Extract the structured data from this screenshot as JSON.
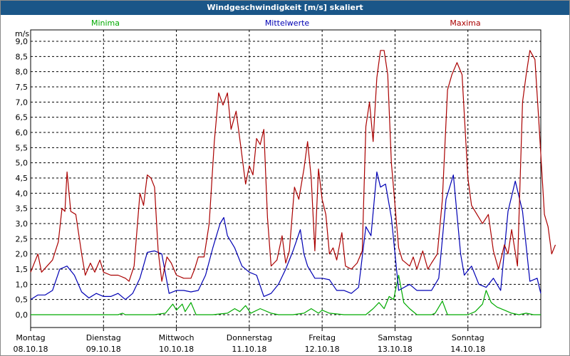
{
  "window": {
    "title": "Windgeschwindigkeit [m/s] skaliert"
  },
  "chart_data": {
    "type": "line",
    "title": "Windgeschwindigkeit [m/s] skaliert",
    "ylabel": "m/s",
    "xlabel": "",
    "ylim": [
      0,
      9.2
    ],
    "xlim": [
      0,
      7
    ],
    "grid": true,
    "legend": "top",
    "y_ticks": [
      "0,0",
      "0,5",
      "1,0",
      "1,5",
      "2,0",
      "2,5",
      "3,0",
      "3,5",
      "4,0",
      "4,5",
      "5,0",
      "5,5",
      "6,0",
      "6,5",
      "7,0",
      "7,5",
      "8,0",
      "8,5",
      "9,0"
    ],
    "categories": [
      {
        "day": "Montag",
        "date": "08.10.18"
      },
      {
        "day": "Dienstag",
        "date": "09.10.18"
      },
      {
        "day": "Mittwoch",
        "date": "10.10.18"
      },
      {
        "day": "Donnerstag",
        "date": "11.10.18"
      },
      {
        "day": "Freitag",
        "date": "12.10.18"
      },
      {
        "day": "Samstag",
        "date": "13.10.18"
      },
      {
        "day": "Sonntag",
        "date": "14.10.18"
      }
    ],
    "series": [
      {
        "name": "Minima",
        "color": "#00aa00",
        "points": [
          [
            0,
            0
          ],
          [
            0.5,
            0
          ],
          [
            1,
            0
          ],
          [
            1.2,
            0
          ],
          [
            1.26,
            0.05
          ],
          [
            1.3,
            0
          ],
          [
            1.5,
            0
          ],
          [
            1.7,
            0
          ],
          [
            1.85,
            0.05
          ],
          [
            1.95,
            0.35
          ],
          [
            2.0,
            0.15
          ],
          [
            2.08,
            0.35
          ],
          [
            2.12,
            0.1
          ],
          [
            2.2,
            0.4
          ],
          [
            2.27,
            0
          ],
          [
            2.5,
            0
          ],
          [
            2.7,
            0.05
          ],
          [
            2.8,
            0.2
          ],
          [
            2.87,
            0.1
          ],
          [
            2.95,
            0.3
          ],
          [
            3.02,
            0.05
          ],
          [
            3.15,
            0.2
          ],
          [
            3.3,
            0.05
          ],
          [
            3.4,
            0
          ],
          [
            3.6,
            0
          ],
          [
            3.75,
            0.05
          ],
          [
            3.85,
            0.2
          ],
          [
            3.95,
            0.05
          ],
          [
            4.0,
            0.15
          ],
          [
            4.1,
            0.05
          ],
          [
            4.3,
            0
          ],
          [
            4.5,
            0
          ],
          [
            4.6,
            0
          ],
          [
            4.7,
            0.2
          ],
          [
            4.78,
            0.4
          ],
          [
            4.85,
            0.2
          ],
          [
            4.92,
            0.6
          ],
          [
            4.98,
            0.5
          ],
          [
            5.05,
            1.3
          ],
          [
            5.12,
            0.4
          ],
          [
            5.2,
            0.2
          ],
          [
            5.3,
            0
          ],
          [
            5.5,
            0
          ],
          [
            5.55,
            0.05
          ],
          [
            5.65,
            0.45
          ],
          [
            5.72,
            0
          ],
          [
            6.0,
            0
          ],
          [
            6.1,
            0.1
          ],
          [
            6.2,
            0.35
          ],
          [
            6.25,
            0.8
          ],
          [
            6.32,
            0.4
          ],
          [
            6.4,
            0.25
          ],
          [
            6.5,
            0.15
          ],
          [
            6.6,
            0.05
          ],
          [
            6.7,
            0
          ],
          [
            6.8,
            0.05
          ],
          [
            6.9,
            0
          ],
          [
            7.0,
            0
          ]
        ]
      },
      {
        "name": "Mittelwerte",
        "color": "#0000b4",
        "points": [
          [
            0,
            0.5
          ],
          [
            0.1,
            0.65
          ],
          [
            0.2,
            0.65
          ],
          [
            0.3,
            0.8
          ],
          [
            0.4,
            1.5
          ],
          [
            0.5,
            1.6
          ],
          [
            0.6,
            1.3
          ],
          [
            0.7,
            0.75
          ],
          [
            0.8,
            0.55
          ],
          [
            0.9,
            0.7
          ],
          [
            1.0,
            0.6
          ],
          [
            1.1,
            0.6
          ],
          [
            1.2,
            0.7
          ],
          [
            1.3,
            0.5
          ],
          [
            1.4,
            0.7
          ],
          [
            1.5,
            1.2
          ],
          [
            1.6,
            2.05
          ],
          [
            1.7,
            2.1
          ],
          [
            1.8,
            2.0
          ],
          [
            1.9,
            0.7
          ],
          [
            2.0,
            0.8
          ],
          [
            2.1,
            0.8
          ],
          [
            2.2,
            0.75
          ],
          [
            2.3,
            0.8
          ],
          [
            2.4,
            1.3
          ],
          [
            2.5,
            2.2
          ],
          [
            2.6,
            3.0
          ],
          [
            2.65,
            3.2
          ],
          [
            2.7,
            2.6
          ],
          [
            2.8,
            2.2
          ],
          [
            2.9,
            1.6
          ],
          [
            3.0,
            1.4
          ],
          [
            3.1,
            1.3
          ],
          [
            3.2,
            0.6
          ],
          [
            3.3,
            0.7
          ],
          [
            3.4,
            1.0
          ],
          [
            3.5,
            1.5
          ],
          [
            3.6,
            2.1
          ],
          [
            3.7,
            2.8
          ],
          [
            3.75,
            2.0
          ],
          [
            3.8,
            1.6
          ],
          [
            3.9,
            1.2
          ],
          [
            4.0,
            1.2
          ],
          [
            4.1,
            1.15
          ],
          [
            4.2,
            0.8
          ],
          [
            4.3,
            0.8
          ],
          [
            4.4,
            0.7
          ],
          [
            4.5,
            0.9
          ],
          [
            4.6,
            2.9
          ],
          [
            4.67,
            2.6
          ],
          [
            4.75,
            4.7
          ],
          [
            4.8,
            4.2
          ],
          [
            4.87,
            4.3
          ],
          [
            4.95,
            3.2
          ],
          [
            5.05,
            0.8
          ],
          [
            5.2,
            1.0
          ],
          [
            5.3,
            0.8
          ],
          [
            5.4,
            0.8
          ],
          [
            5.5,
            0.8
          ],
          [
            5.6,
            1.2
          ],
          [
            5.7,
            3.8
          ],
          [
            5.8,
            4.6
          ],
          [
            5.9,
            2.0
          ],
          [
            5.95,
            1.3
          ],
          [
            6.05,
            1.6
          ],
          [
            6.15,
            1.0
          ],
          [
            6.25,
            0.9
          ],
          [
            6.35,
            1.2
          ],
          [
            6.45,
            0.8
          ],
          [
            6.55,
            3.4
          ],
          [
            6.65,
            4.4
          ],
          [
            6.75,
            3.4
          ],
          [
            6.85,
            1.1
          ],
          [
            6.95,
            1.2
          ],
          [
            7.0,
            0.7
          ]
        ]
      },
      {
        "name": "Maxima",
        "color": "#aa0000",
        "points": [
          [
            0,
            1.4
          ],
          [
            0.1,
            2.0
          ],
          [
            0.15,
            1.4
          ],
          [
            0.3,
            1.8
          ],
          [
            0.38,
            2.4
          ],
          [
            0.43,
            3.5
          ],
          [
            0.47,
            3.4
          ],
          [
            0.5,
            4.7
          ],
          [
            0.55,
            3.4
          ],
          [
            0.62,
            3.3
          ],
          [
            0.7,
            2.0
          ],
          [
            0.75,
            1.3
          ],
          [
            0.82,
            1.7
          ],
          [
            0.88,
            1.4
          ],
          [
            0.95,
            1.8
          ],
          [
            1.0,
            1.4
          ],
          [
            1.1,
            1.3
          ],
          [
            1.2,
            1.3
          ],
          [
            1.3,
            1.2
          ],
          [
            1.35,
            1.1
          ],
          [
            1.42,
            1.6
          ],
          [
            1.5,
            4.0
          ],
          [
            1.55,
            3.6
          ],
          [
            1.6,
            4.6
          ],
          [
            1.65,
            4.5
          ],
          [
            1.7,
            4.2
          ],
          [
            1.75,
            2.1
          ],
          [
            1.8,
            1.1
          ],
          [
            1.87,
            1.9
          ],
          [
            1.93,
            1.7
          ],
          [
            2.0,
            1.3
          ],
          [
            2.1,
            1.2
          ],
          [
            2.2,
            1.2
          ],
          [
            2.25,
            1.5
          ],
          [
            2.3,
            1.9
          ],
          [
            2.38,
            1.9
          ],
          [
            2.45,
            3.0
          ],
          [
            2.52,
            5.7
          ],
          [
            2.58,
            7.3
          ],
          [
            2.64,
            6.9
          ],
          [
            2.7,
            7.3
          ],
          [
            2.75,
            6.1
          ],
          [
            2.82,
            6.7
          ],
          [
            2.88,
            5.6
          ],
          [
            2.95,
            4.3
          ],
          [
            3.0,
            4.9
          ],
          [
            3.05,
            4.6
          ],
          [
            3.1,
            5.8
          ],
          [
            3.15,
            5.6
          ],
          [
            3.2,
            6.1
          ],
          [
            3.25,
            3.2
          ],
          [
            3.3,
            1.6
          ],
          [
            3.38,
            1.8
          ],
          [
            3.45,
            2.6
          ],
          [
            3.5,
            1.7
          ],
          [
            3.55,
            2.1
          ],
          [
            3.62,
            4.2
          ],
          [
            3.68,
            3.8
          ],
          [
            3.75,
            4.8
          ],
          [
            3.8,
            5.7
          ],
          [
            3.85,
            4.5
          ],
          [
            3.9,
            2.1
          ],
          [
            3.95,
            4.8
          ],
          [
            4.0,
            3.8
          ],
          [
            4.05,
            3.3
          ],
          [
            4.1,
            2.0
          ],
          [
            4.15,
            2.2
          ],
          [
            4.2,
            1.8
          ],
          [
            4.27,
            2.7
          ],
          [
            4.32,
            1.6
          ],
          [
            4.4,
            1.5
          ],
          [
            4.48,
            1.7
          ],
          [
            4.55,
            2.1
          ],
          [
            4.6,
            6.2
          ],
          [
            4.65,
            7.0
          ],
          [
            4.7,
            5.7
          ],
          [
            4.75,
            7.8
          ],
          [
            4.8,
            8.7
          ],
          [
            4.85,
            8.7
          ],
          [
            4.9,
            7.9
          ],
          [
            4.95,
            5.0
          ],
          [
            5.0,
            3.6
          ],
          [
            5.05,
            2.2
          ],
          [
            5.1,
            1.8
          ],
          [
            5.2,
            1.6
          ],
          [
            5.25,
            1.9
          ],
          [
            5.3,
            1.5
          ],
          [
            5.38,
            2.1
          ],
          [
            5.45,
            1.5
          ],
          [
            5.5,
            1.7
          ],
          [
            5.58,
            2.0
          ],
          [
            5.65,
            3.8
          ],
          [
            5.72,
            7.4
          ],
          [
            5.78,
            7.9
          ],
          [
            5.85,
            8.3
          ],
          [
            5.92,
            7.9
          ],
          [
            6.0,
            4.5
          ],
          [
            6.05,
            3.6
          ],
          [
            6.1,
            3.4
          ],
          [
            6.2,
            3.0
          ],
          [
            6.28,
            3.3
          ],
          [
            6.35,
            2.1
          ],
          [
            6.42,
            1.5
          ],
          [
            6.5,
            2.3
          ],
          [
            6.55,
            2.0
          ],
          [
            6.6,
            2.8
          ],
          [
            6.68,
            1.6
          ],
          [
            6.75,
            7.0
          ],
          [
            6.8,
            7.9
          ],
          [
            6.85,
            8.7
          ],
          [
            6.92,
            8.4
          ],
          [
            6.97,
            6.5
          ],
          [
            7.05,
            3.3
          ],
          [
            7.1,
            2.9
          ],
          [
            7.15,
            2.0
          ],
          [
            7.2,
            2.3
          ]
        ]
      }
    ]
  }
}
